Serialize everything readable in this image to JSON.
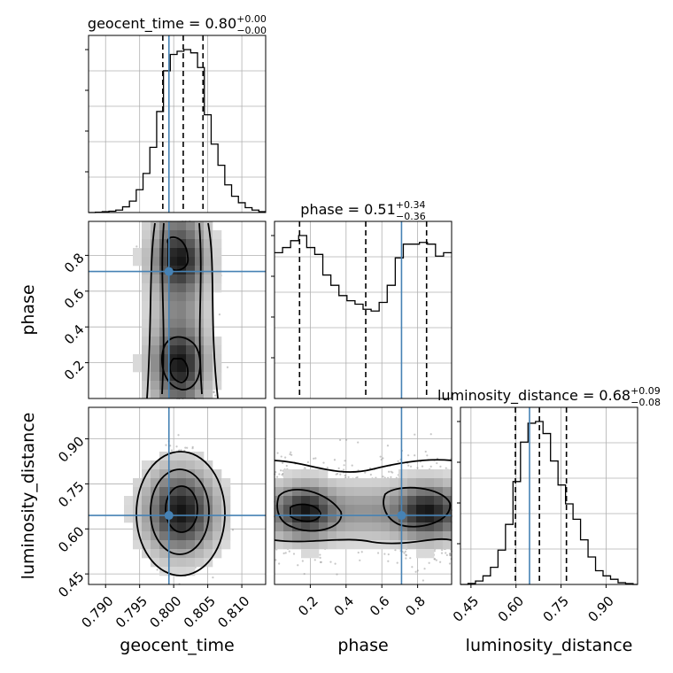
{
  "chart_data": {
    "type": "corner",
    "parameters": [
      "geocent_time",
      "phase",
      "luminosity_distance"
    ],
    "truth_color": "#4682b4",
    "titles": {
      "geocent_time": {
        "prefix": "geocent_time = 0.80",
        "plus": "+0.00",
        "minus": "−0.00"
      },
      "phase": {
        "prefix": "phase = 0.51",
        "plus": "+0.34",
        "minus": "−0.36"
      },
      "luminosity_distance": {
        "prefix": "luminosity_distance = 0.68",
        "plus": "+0.09",
        "minus": "−0.08"
      }
    },
    "axes": {
      "geocent_time": {
        "range": [
          0.7875,
          0.8135
        ],
        "ticks": [
          0.79,
          0.795,
          0.8,
          0.805,
          0.81
        ],
        "tick_labels": [
          "0.790",
          "0.795",
          "0.800",
          "0.805",
          "0.810"
        ]
      },
      "phase": {
        "range": [
          0.0,
          0.99
        ],
        "ticks": [
          0.2,
          0.4,
          0.6,
          0.8
        ],
        "tick_labels": [
          "0.2",
          "0.4",
          "0.6",
          "0.8"
        ]
      },
      "luminosity_distance": {
        "range": [
          0.415,
          1.005
        ],
        "ticks": [
          0.45,
          0.6,
          0.75,
          0.9
        ],
        "tick_labels": [
          "0.45",
          "0.60",
          "0.75",
          "0.90"
        ]
      }
    },
    "truths": {
      "geocent_time": 0.7993,
      "phase": 0.71,
      "luminosity_distance": 0.645
    },
    "quantiles": {
      "geocent_time": [
        0.7984,
        0.8014,
        0.8043
      ],
      "phase": [
        0.14,
        0.51,
        0.85
      ],
      "luminosity_distance": [
        0.598,
        0.678,
        0.768
      ]
    },
    "histograms": {
      "geocent_time": {
        "bin_edges": [
          0.7875,
          0.7885,
          0.7895,
          0.7905,
          0.7915,
          0.7925,
          0.7935,
          0.7945,
          0.7955,
          0.7965,
          0.7975,
          0.7985,
          0.7995,
          0.8005,
          0.8015,
          0.8025,
          0.8035,
          0.8045,
          0.8055,
          0.8065,
          0.8075,
          0.8085,
          0.8095,
          0.8105,
          0.8115,
          0.8125,
          0.8135
        ],
        "values": [
          0,
          0.2,
          0.5,
          0.8,
          1.5,
          3.5,
          7,
          14,
          24,
          40,
          62,
          87,
          97,
          99,
          100,
          98,
          89,
          60,
          42,
          29,
          17,
          10,
          6,
          3,
          1.5,
          0.5
        ]
      },
      "phase": {
        "bin_edges": [
          0.0,
          0.045,
          0.09,
          0.135,
          0.18,
          0.225,
          0.27,
          0.315,
          0.36,
          0.405,
          0.45,
          0.495,
          0.54,
          0.585,
          0.63,
          0.675,
          0.72,
          0.765,
          0.81,
          0.855,
          0.9,
          0.945,
          0.99
        ],
        "values": [
          0.85,
          0.88,
          0.92,
          0.95,
          0.88,
          0.84,
          0.72,
          0.66,
          0.6,
          0.57,
          0.55,
          0.52,
          0.51,
          0.56,
          0.66,
          0.82,
          0.9,
          0.9,
          0.91,
          0.9,
          0.83,
          0.85
        ]
      },
      "luminosity_distance": {
        "bin_edges": [
          0.415,
          0.44,
          0.465,
          0.49,
          0.515,
          0.54,
          0.565,
          0.59,
          0.615,
          0.64,
          0.665,
          0.69,
          0.715,
          0.74,
          0.765,
          0.79,
          0.815,
          0.84,
          0.865,
          0.89,
          0.915,
          0.94,
          0.965,
          0.99,
          1.005
        ],
        "values": [
          0,
          0.6,
          2,
          5,
          10,
          20,
          35,
          60,
          83,
          94,
          95,
          88,
          72,
          58,
          47,
          38,
          26,
          16,
          8,
          5,
          3,
          1,
          0.5,
          0
        ]
      }
    },
    "xlabel": [
      "geocent_time",
      "phase",
      "luminosity_distance"
    ],
    "ylabel": [
      "phase",
      "luminosity_distance"
    ],
    "grid": true
  }
}
